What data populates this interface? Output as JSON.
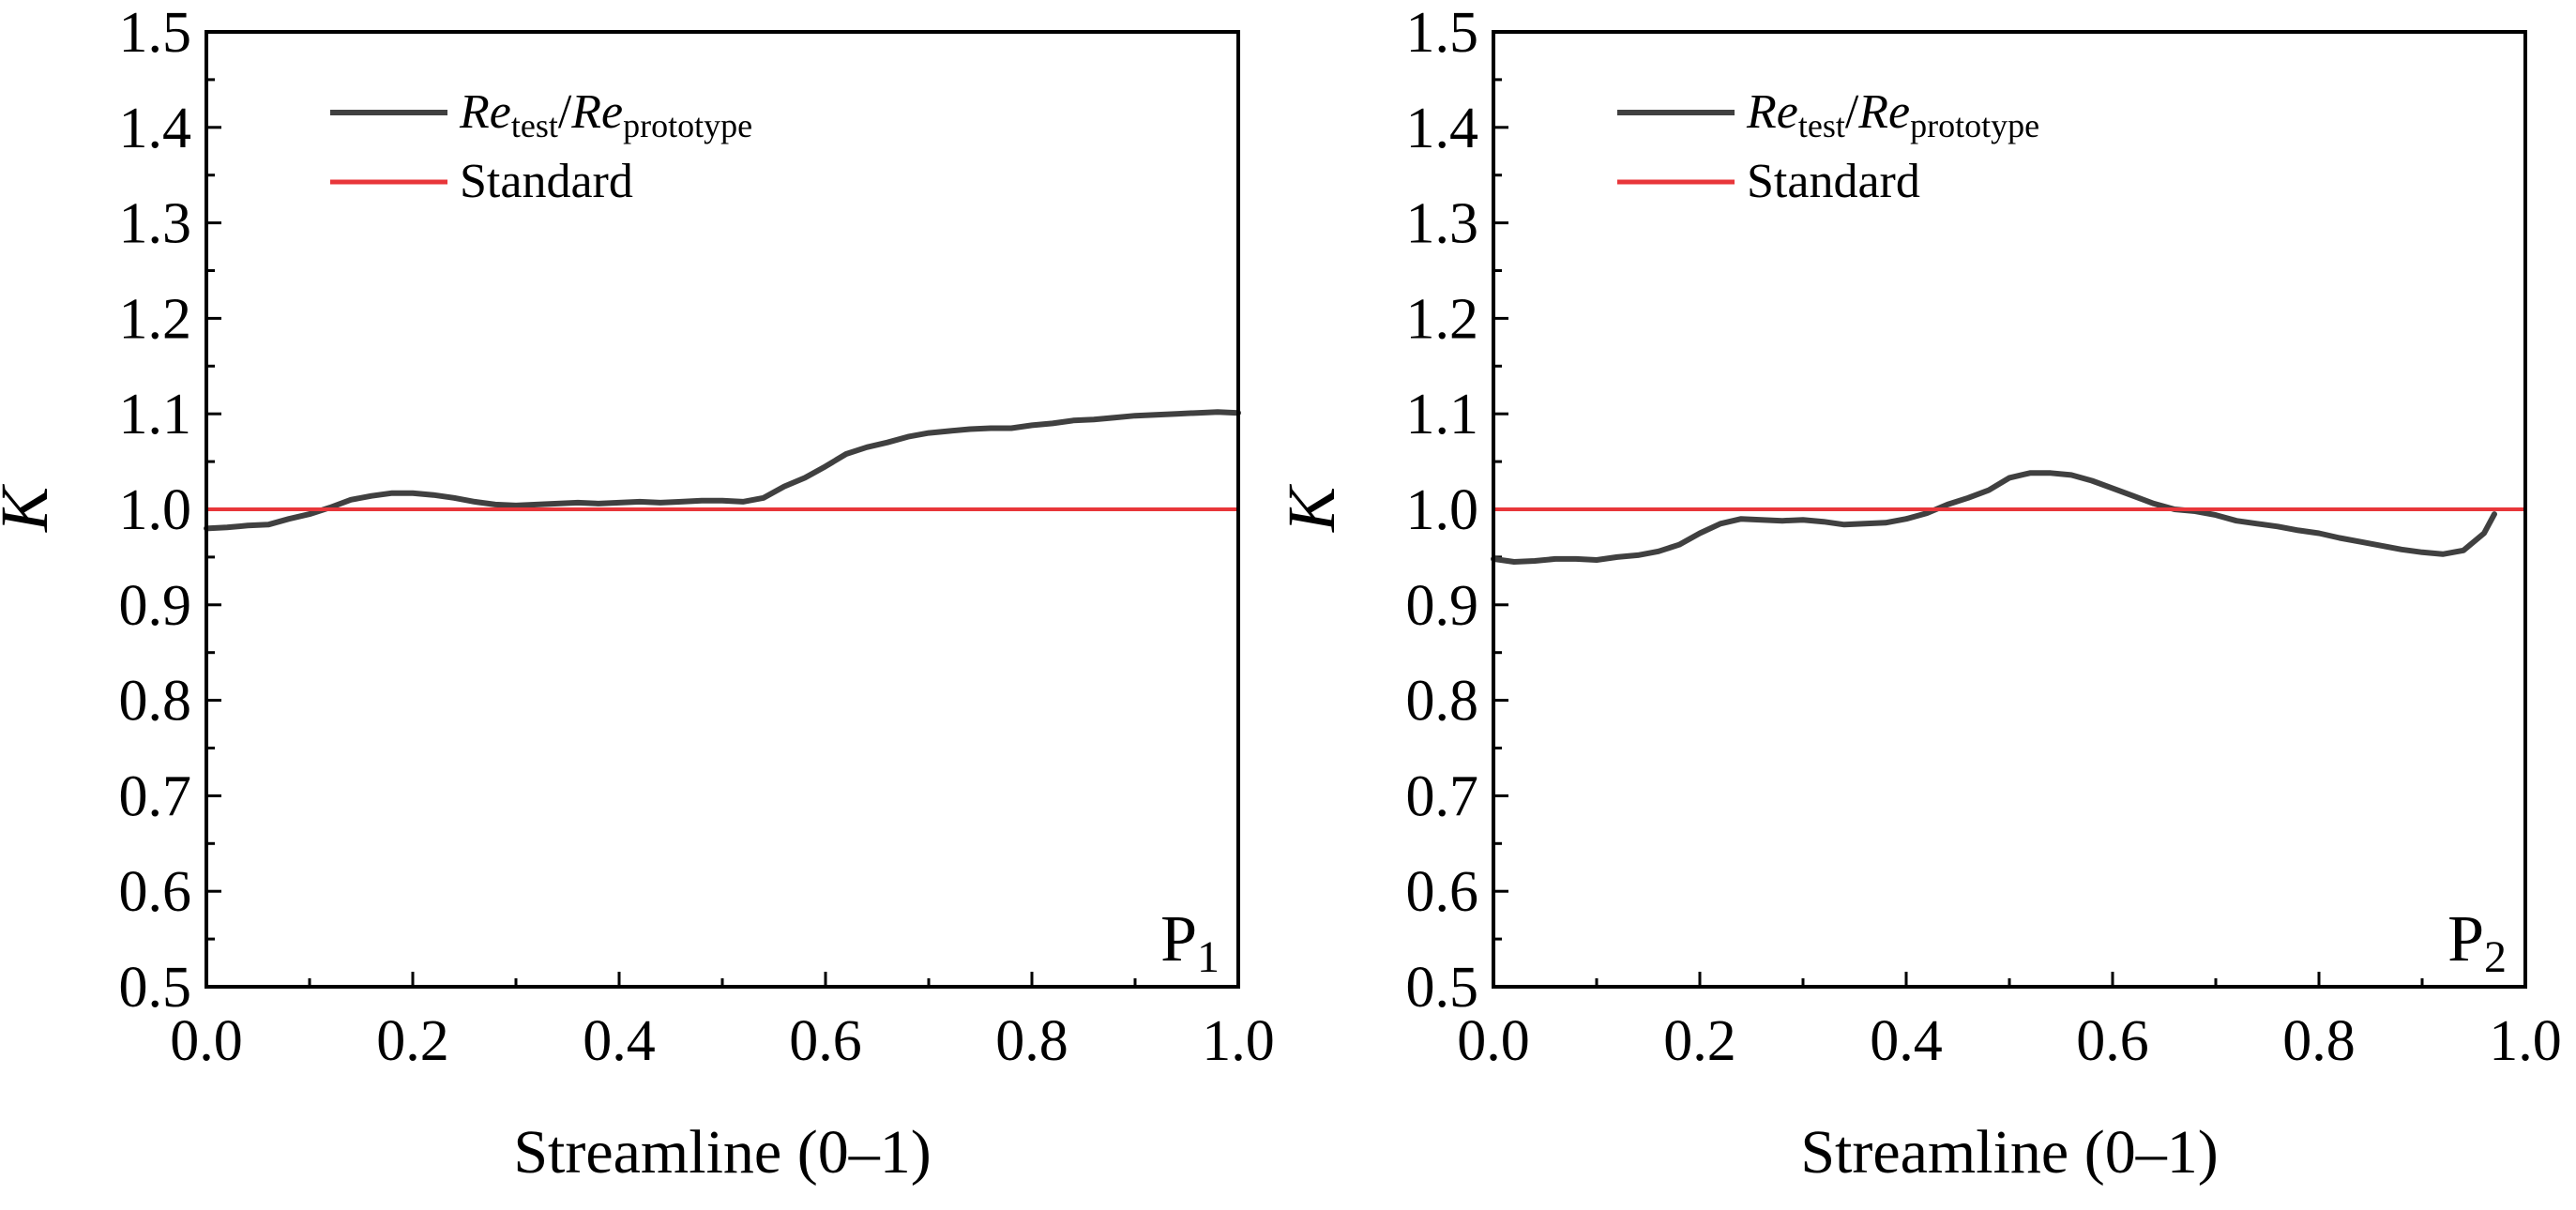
{
  "chart_data": [
    {
      "type": "line",
      "panel_label": "P",
      "panel_label_sub": "1",
      "xlabel": "Streamline (0–1)",
      "ylabel": "K",
      "xlim": [
        0.0,
        1.0
      ],
      "ylim": [
        0.5,
        1.5
      ],
      "xticks": [
        "0.0",
        "0.2",
        "0.4",
        "0.6",
        "0.8",
        "1.0"
      ],
      "yticks": [
        "0.5",
        "0.6",
        "0.7",
        "0.8",
        "0.9",
        "1.0",
        "1.1",
        "1.2",
        "1.3",
        "1.4",
        "1.5"
      ],
      "legend": {
        "position": "top-left",
        "entries": [
          {
            "name": "Re_test/Re_prototype",
            "text_main": "Re",
            "sub1": "test",
            "slash": "/",
            "text_main2": "Re",
            "sub2": "prototype",
            "color": "#404040"
          },
          {
            "name": "Standard",
            "text": "Standard",
            "color": "#e8363a"
          }
        ]
      },
      "series": [
        {
          "name": "Re_test/Re_prototype",
          "color": "#404040",
          "x": [
            0.0,
            0.02,
            0.04,
            0.06,
            0.08,
            0.1,
            0.12,
            0.14,
            0.16,
            0.18,
            0.2,
            0.22,
            0.24,
            0.26,
            0.28,
            0.3,
            0.32,
            0.34,
            0.36,
            0.38,
            0.4,
            0.42,
            0.44,
            0.46,
            0.48,
            0.5,
            0.52,
            0.54,
            0.56,
            0.58,
            0.6,
            0.62,
            0.64,
            0.66,
            0.68,
            0.7,
            0.72,
            0.74,
            0.76,
            0.78,
            0.8,
            0.82,
            0.84,
            0.86,
            0.88,
            0.9,
            0.92,
            0.94,
            0.96,
            0.98,
            1.0
          ],
          "values": [
            0.98,
            0.981,
            0.983,
            0.984,
            0.99,
            0.995,
            1.002,
            1.01,
            1.014,
            1.017,
            1.017,
            1.015,
            1.012,
            1.008,
            1.005,
            1.004,
            1.005,
            1.006,
            1.007,
            1.006,
            1.007,
            1.008,
            1.007,
            1.008,
            1.009,
            1.009,
            1.008,
            1.012,
            1.024,
            1.033,
            1.045,
            1.058,
            1.065,
            1.07,
            1.076,
            1.08,
            1.082,
            1.084,
            1.085,
            1.085,
            1.088,
            1.09,
            1.093,
            1.094,
            1.096,
            1.098,
            1.099,
            1.1,
            1.101,
            1.102,
            1.101
          ]
        },
        {
          "name": "Standard",
          "color": "#e8363a",
          "x": [
            0.0,
            1.0
          ],
          "values": [
            1.0,
            1.0
          ]
        }
      ]
    },
    {
      "type": "line",
      "panel_label": "P",
      "panel_label_sub": "2",
      "xlabel": "Streamline (0–1)",
      "ylabel": "K",
      "xlim": [
        0.0,
        1.0
      ],
      "ylim": [
        0.5,
        1.5
      ],
      "xticks": [
        "0.0",
        "0.2",
        "0.4",
        "0.6",
        "0.8",
        "1.0"
      ],
      "yticks": [
        "0.5",
        "0.6",
        "0.7",
        "0.8",
        "0.9",
        "1.0",
        "1.1",
        "1.2",
        "1.3",
        "1.4",
        "1.5"
      ],
      "legend": {
        "position": "top-left",
        "entries": [
          {
            "name": "Re_test/Re_prototype",
            "text_main": "Re",
            "sub1": "test",
            "slash": "/",
            "text_main2": "Re",
            "sub2": "prototype",
            "color": "#404040"
          },
          {
            "name": "Standard",
            "text": "Standard",
            "color": "#e8363a"
          }
        ]
      },
      "series": [
        {
          "name": "Re_test/Re_prototype",
          "color": "#404040",
          "x": [
            0.0,
            0.02,
            0.04,
            0.06,
            0.08,
            0.1,
            0.12,
            0.14,
            0.16,
            0.18,
            0.2,
            0.22,
            0.24,
            0.26,
            0.28,
            0.3,
            0.32,
            0.34,
            0.36,
            0.38,
            0.4,
            0.42,
            0.44,
            0.46,
            0.48,
            0.5,
            0.52,
            0.54,
            0.56,
            0.58,
            0.6,
            0.62,
            0.64,
            0.66,
            0.68,
            0.7,
            0.72,
            0.74,
            0.76,
            0.78,
            0.8,
            0.82,
            0.84,
            0.86,
            0.88,
            0.9,
            0.92,
            0.94,
            0.96,
            0.97
          ],
          "values": [
            0.948,
            0.945,
            0.946,
            0.948,
            0.948,
            0.947,
            0.95,
            0.952,
            0.956,
            0.963,
            0.975,
            0.985,
            0.99,
            0.989,
            0.988,
            0.989,
            0.987,
            0.984,
            0.985,
            0.986,
            0.99,
            0.996,
            1.005,
            1.012,
            1.02,
            1.033,
            1.038,
            1.038,
            1.036,
            1.03,
            1.022,
            1.014,
            1.006,
            1.0,
            0.998,
            0.994,
            0.988,
            0.985,
            0.982,
            0.978,
            0.975,
            0.97,
            0.966,
            0.962,
            0.958,
            0.955,
            0.953,
            0.957,
            0.975,
            0.995
          ]
        },
        {
          "name": "Standard",
          "color": "#e8363a",
          "x": [
            0.0,
            1.0
          ],
          "values": [
            1.0,
            1.0
          ]
        }
      ]
    }
  ]
}
